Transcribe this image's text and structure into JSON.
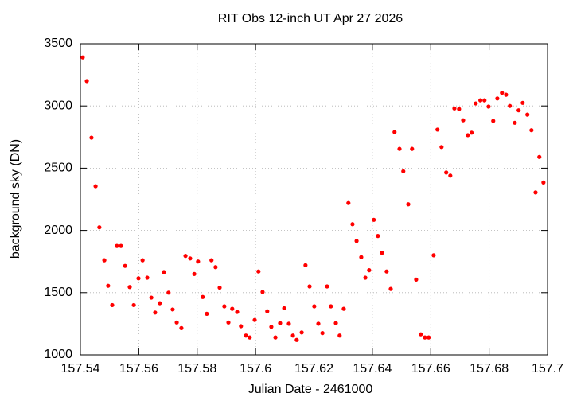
{
  "chart_data": {
    "type": "scatter",
    "title": "RIT Obs 12-inch UT Apr 27 2026",
    "x_label": "Julian Date - 2461000",
    "y_label": "background sky (DN)",
    "color": "#ff0000",
    "grid": true,
    "xlim": [
      157.54,
      157.7
    ],
    "ylim": [
      1000,
      3500
    ],
    "xticks": [
      157.54,
      157.56,
      157.58,
      157.6,
      157.62,
      157.64,
      157.66,
      157.68,
      157.7
    ],
    "yticks": [
      1000,
      1500,
      2000,
      2500,
      3000,
      3500
    ],
    "x": [
      157.5408,
      157.5422,
      157.5438,
      157.5452,
      157.5465,
      157.5482,
      157.5495,
      157.5509,
      157.5525,
      157.5539,
      157.5553,
      157.5569,
      157.5583,
      157.5599,
      157.5613,
      157.5629,
      157.5643,
      157.5656,
      157.5672,
      157.5686,
      157.5702,
      157.5716,
      157.573,
      157.5746,
      157.576,
      157.5776,
      157.579,
      157.5803,
      157.5819,
      157.5833,
      157.5849,
      157.5863,
      157.5877,
      157.5893,
      157.5907,
      157.592,
      157.5937,
      157.595,
      157.5967,
      157.598,
      157.5997,
      157.601,
      157.6024,
      157.604,
      157.6054,
      157.6068,
      157.6084,
      157.6098,
      157.6114,
      157.6128,
      157.6141,
      157.6158,
      157.6171,
      157.6185,
      157.6201,
      157.6215,
      157.6229,
      157.6245,
      157.6258,
      157.6275,
      157.6288,
      157.6302,
      157.6318,
      157.6332,
      157.6346,
      157.6362,
      157.6376,
      157.6389,
      157.6405,
      157.6419,
      157.6433,
      157.6449,
      157.6463,
      157.6476,
      157.6493,
      157.6506,
      157.6523,
      157.6536,
      157.655,
      157.6566,
      157.658,
      157.6593,
      157.661,
      157.6623,
      157.6637,
      157.6653,
      157.6667,
      157.6681,
      157.6697,
      157.6711,
      157.6727,
      157.674,
      157.6754,
      157.677,
      157.6784,
      157.6798,
      157.6814,
      157.6828,
      157.6844,
      157.6858,
      157.6871,
      157.6888,
      157.6901,
      157.6915,
      157.6931,
      157.6945,
      157.6959,
      157.6972,
      157.6986
    ],
    "values": [
      3390,
      3200,
      2745,
      2355,
      2025,
      1760,
      1555,
      1400,
      1875,
      1875,
      1715,
      1545,
      1400,
      1615,
      1760,
      1620,
      1460,
      1340,
      1415,
      1665,
      1500,
      1365,
      1260,
      1215,
      1795,
      1775,
      1650,
      1750,
      1465,
      1330,
      1760,
      1705,
      1540,
      1390,
      1260,
      1370,
      1345,
      1230,
      1155,
      1140,
      1280,
      1670,
      1505,
      1350,
      1225,
      1140,
      1255,
      1375,
      1250,
      1155,
      1120,
      1180,
      1720,
      1550,
      1390,
      1250,
      1175,
      1550,
      1390,
      1255,
      1155,
      1370,
      2220,
      2050,
      1915,
      1785,
      1620,
      1680,
      2085,
      1955,
      1820,
      1670,
      1530,
      2790,
      2655,
      2475,
      2210,
      2655,
      1605,
      1165,
      1140,
      1140,
      1800,
      2810,
      2670,
      2465,
      2440,
      2980,
      2975,
      2885,
      2765,
      2785,
      3020,
      3045,
      3045,
      2995,
      2880,
      3060,
      3105,
      3090,
      3000,
      2865,
      2965,
      3025,
      2930,
      2805,
      2305,
      2590,
      2385
    ]
  }
}
